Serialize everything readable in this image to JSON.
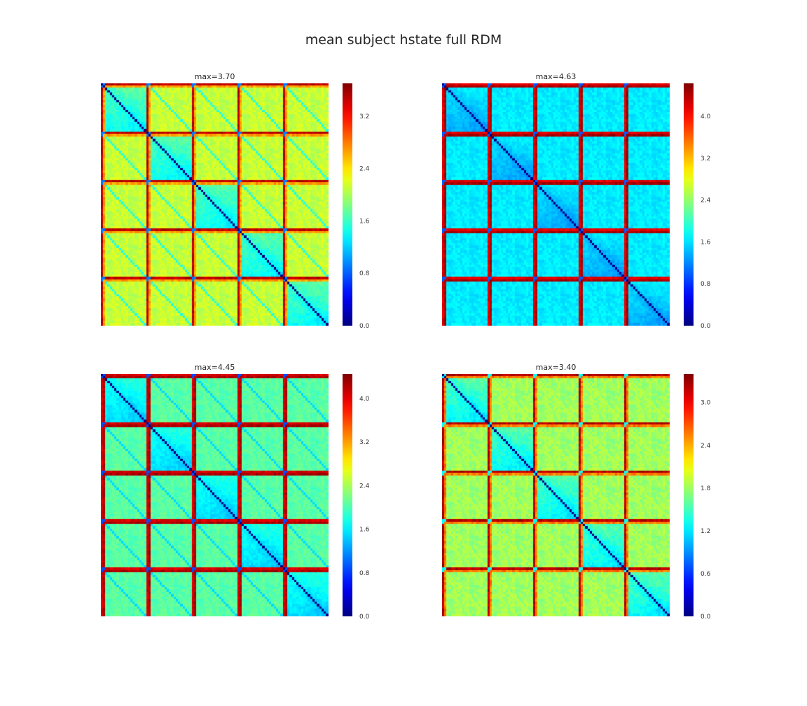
{
  "suptitle": "mean subject hstate full RDM",
  "chart_data": [
    {
      "type": "heatmap",
      "title": "max=3.70",
      "colormap": "jet",
      "n": 100,
      "blocks": 5,
      "vmin": 0,
      "vmax": 3.7,
      "colorbar_ticks": [
        "0.0",
        "0.8",
        "1.6",
        "2.4",
        "3.2"
      ],
      "diagonal_value": 0.0,
      "within_block_offdiag": 1.5,
      "cross_block_base": 2.1,
      "marker_row_value": 3.6,
      "secondary_row_value": 2.8,
      "near_marker_value": 0.9
    },
    {
      "type": "heatmap",
      "title": "max=4.63",
      "colormap": "jet",
      "n": 100,
      "blocks": 5,
      "vmin": 0,
      "vmax": 4.63,
      "colorbar_ticks": [
        "0.0",
        "0.8",
        "1.6",
        "2.4",
        "3.2",
        "4.0"
      ],
      "diagonal_value": 0.0,
      "within_block_offdiag": 1.45,
      "cross_block_base": 1.65,
      "marker_row_value": 4.3,
      "secondary_row_value": 4.6,
      "near_marker_value": 1.0
    },
    {
      "type": "heatmap",
      "title": "max=4.45",
      "colormap": "jet",
      "n": 100,
      "blocks": 5,
      "vmin": 0,
      "vmax": 4.45,
      "colorbar_ticks": [
        "0.0",
        "0.8",
        "1.6",
        "2.4",
        "3.2",
        "4.0"
      ],
      "diagonal_value": 0.0,
      "within_block_offdiag": 1.6,
      "cross_block_base": 2.05,
      "marker_row_value": 4.2,
      "secondary_row_value": 4.4,
      "near_marker_value": 0.9
    },
    {
      "type": "heatmap",
      "title": "max=3.40",
      "colormap": "jet",
      "n": 100,
      "blocks": 5,
      "vmin": 0,
      "vmax": 3.4,
      "colorbar_ticks": [
        "0.0",
        "0.6",
        "1.2",
        "1.8",
        "2.4",
        "3.0"
      ],
      "diagonal_value": 0.0,
      "within_block_offdiag": 1.35,
      "cross_block_base": 1.8,
      "marker_row_value": 3.35,
      "secondary_row_value": 2.7,
      "near_marker_value": 1.3
    }
  ]
}
